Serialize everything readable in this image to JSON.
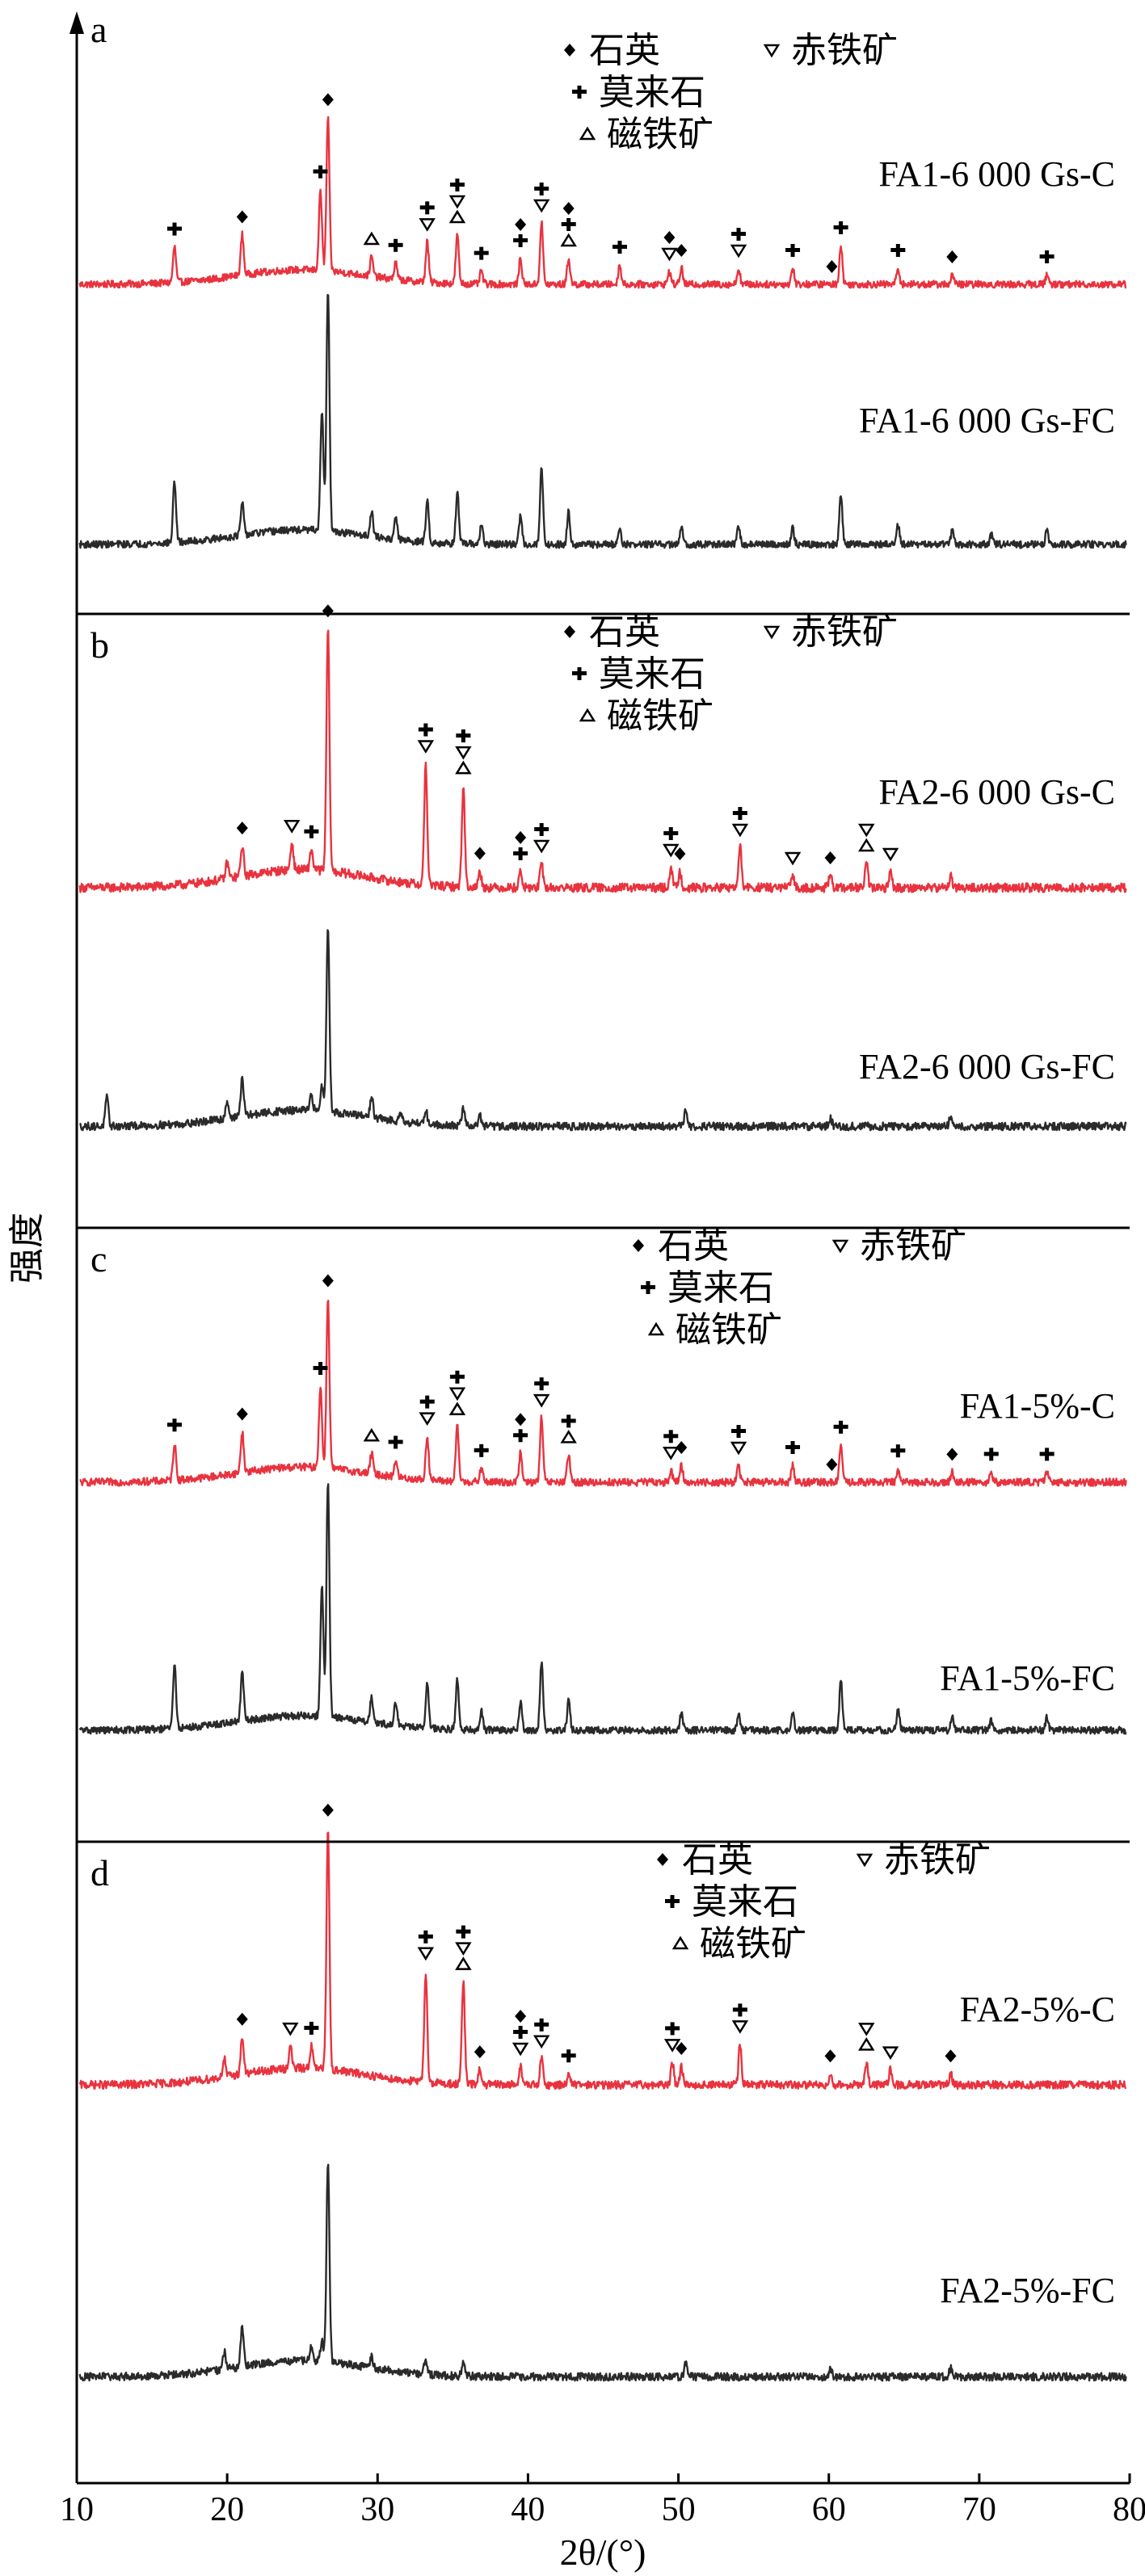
{
  "axes": {
    "xlabel": "2θ/(°)",
    "ylabel": "强度",
    "xlim": [
      10,
      80
    ],
    "xticks": [
      10,
      20,
      30,
      40,
      50,
      60,
      70,
      80
    ]
  },
  "colors": {
    "coated": "#e8333f",
    "uncoated": "#2a2a2a",
    "axis": "#000000"
  },
  "legend_labels": {
    "quartz": "石英",
    "hematite": "赤铁矿",
    "mullite": "莫来石",
    "magnetite": "磁铁矿"
  },
  "chart_data": [
    {
      "type": "line",
      "panel": "a",
      "legend": [
        "石英",
        "赤铁矿",
        "莫来石",
        "磁铁矿"
      ],
      "series": [
        {
          "name": "FA1-6 000 Gs-C",
          "color": "#e8333f",
          "baseline": 0.1,
          "noise": 0.022,
          "peaks": [
            [
              16.5,
              0.22
            ],
            [
              21,
              0.25
            ],
            [
              26.2,
              0.5
            ],
            [
              26.7,
              0.95
            ],
            [
              29.6,
              0.12
            ],
            [
              31.2,
              0.1
            ],
            [
              33.3,
              0.25
            ],
            [
              35.3,
              0.3
            ],
            [
              36.9,
              0.08
            ],
            [
              39.5,
              0.16
            ],
            [
              40.9,
              0.38
            ],
            [
              42.7,
              0.16
            ],
            [
              46.1,
              0.12
            ],
            [
              49.4,
              0.08
            ],
            [
              50.2,
              0.1
            ],
            [
              54,
              0.1
            ],
            [
              57.6,
              0.1
            ],
            [
              60.8,
              0.24
            ],
            [
              64.6,
              0.1
            ],
            [
              68.2,
              0.06
            ],
            [
              74.5,
              0.06
            ]
          ]
        },
        {
          "name": "FA1-6 000 Gs-FC",
          "color": "#2a2a2a",
          "baseline": 0.08,
          "noise": 0.022,
          "peaks": [
            [
              16.5,
              0.38
            ],
            [
              21,
              0.2
            ],
            [
              26.3,
              0.75
            ],
            [
              26.7,
              1.5
            ],
            [
              29.6,
              0.16
            ],
            [
              31.2,
              0.14
            ],
            [
              33.3,
              0.26
            ],
            [
              35.3,
              0.32
            ],
            [
              36.9,
              0.12
            ],
            [
              39.5,
              0.18
            ],
            [
              40.9,
              0.48
            ],
            [
              42.7,
              0.2
            ],
            [
              46.1,
              0.1
            ],
            [
              50.2,
              0.1
            ],
            [
              54,
              0.11
            ],
            [
              57.6,
              0.1
            ],
            [
              60.8,
              0.3
            ],
            [
              64.6,
              0.12
            ],
            [
              68.2,
              0.08
            ],
            [
              70.8,
              0.06
            ],
            [
              74.5,
              0.08
            ]
          ]
        }
      ]
    },
    {
      "type": "line",
      "panel": "b",
      "legend": [
        "石英",
        "赤铁矿",
        "莫来石",
        "磁铁矿"
      ],
      "series": [
        {
          "name": "FA2-6 000 Gs-C",
          "color": "#e8333f",
          "baseline": 0.1,
          "noise": 0.022,
          "peaks": [
            [
              20,
              0.08
            ],
            [
              21,
              0.15
            ],
            [
              24.3,
              0.13
            ],
            [
              25.6,
              0.1
            ],
            [
              26.7,
              1.2
            ],
            [
              33.2,
              0.6
            ],
            [
              35.7,
              0.5
            ],
            [
              36.8,
              0.08
            ],
            [
              39.5,
              0.08
            ],
            [
              40.9,
              0.12
            ],
            [
              49.5,
              0.1
            ],
            [
              50.1,
              0.08
            ],
            [
              54.1,
              0.2
            ],
            [
              57.6,
              0.06
            ],
            [
              60.1,
              0.06
            ],
            [
              62.5,
              0.12
            ],
            [
              64.1,
              0.08
            ],
            [
              68.1,
              0.06
            ]
          ]
        },
        {
          "name": "FA2-6 000 Gs-FC",
          "color": "#2a2a2a",
          "baseline": 0.08,
          "noise": 0.022,
          "peaks": [
            [
              12,
              0.16
            ],
            [
              20,
              0.1
            ],
            [
              21,
              0.22
            ],
            [
              25.6,
              0.08
            ],
            [
              26.3,
              0.14
            ],
            [
              26.7,
              1.05
            ],
            [
              29.6,
              0.12
            ],
            [
              31.5,
              0.06
            ],
            [
              33.2,
              0.08
            ],
            [
              35.7,
              0.1
            ],
            [
              36.8,
              0.06
            ],
            [
              50.5,
              0.1
            ],
            [
              60.1,
              0.05
            ],
            [
              68.1,
              0.05
            ]
          ]
        }
      ]
    },
    {
      "type": "line",
      "panel": "c",
      "legend": [
        "石英",
        "赤铁矿",
        "莫来石",
        "磁铁矿"
      ],
      "series": [
        {
          "name": "FA1-5%-C",
          "color": "#e8333f",
          "baseline": 0.1,
          "noise": 0.022,
          "peaks": [
            [
              16.5,
              0.22
            ],
            [
              21,
              0.24
            ],
            [
              26.2,
              0.48
            ],
            [
              26.7,
              1.0
            ],
            [
              29.6,
              0.12
            ],
            [
              31.2,
              0.1
            ],
            [
              33.3,
              0.26
            ],
            [
              35.3,
              0.32
            ],
            [
              36.9,
              0.08
            ],
            [
              39.5,
              0.17
            ],
            [
              40.9,
              0.38
            ],
            [
              42.7,
              0.16
            ],
            [
              49.5,
              0.07
            ],
            [
              50.2,
              0.1
            ],
            [
              54,
              0.1
            ],
            [
              57.6,
              0.1
            ],
            [
              60.8,
              0.22
            ],
            [
              64.6,
              0.08
            ],
            [
              68.2,
              0.06
            ],
            [
              70.8,
              0.06
            ],
            [
              74.5,
              0.06
            ]
          ]
        },
        {
          "name": "FA1-5%-FC",
          "color": "#2a2a2a",
          "baseline": 0.08,
          "noise": 0.022,
          "peaks": [
            [
              16.5,
              0.4
            ],
            [
              21,
              0.3
            ],
            [
              26.3,
              0.8
            ],
            [
              26.7,
              1.45
            ],
            [
              29.6,
              0.16
            ],
            [
              31.2,
              0.14
            ],
            [
              33.3,
              0.28
            ],
            [
              35.3,
              0.32
            ],
            [
              36.9,
              0.12
            ],
            [
              39.5,
              0.18
            ],
            [
              40.9,
              0.42
            ],
            [
              42.7,
              0.18
            ],
            [
              50.2,
              0.1
            ],
            [
              54,
              0.1
            ],
            [
              57.6,
              0.1
            ],
            [
              60.8,
              0.3
            ],
            [
              64.6,
              0.12
            ],
            [
              68.2,
              0.08
            ],
            [
              70.8,
              0.06
            ],
            [
              74.5,
              0.08
            ]
          ]
        }
      ]
    },
    {
      "type": "line",
      "panel": "d",
      "legend": [
        "石英",
        "赤铁矿",
        "莫来石",
        "磁铁矿"
      ],
      "series": [
        {
          "name": "FA2-5%-C",
          "color": "#e8333f",
          "baseline": 0.1,
          "noise": 0.022,
          "peaks": [
            [
              19.8,
              0.1
            ],
            [
              21,
              0.2
            ],
            [
              24.2,
              0.12
            ],
            [
              25.6,
              0.12
            ],
            [
              26.7,
              1.3
            ],
            [
              33.2,
              0.6
            ],
            [
              35.7,
              0.55
            ],
            [
              36.8,
              0.08
            ],
            [
              39.5,
              0.1
            ],
            [
              40.9,
              0.14
            ],
            [
              42.7,
              0.06
            ],
            [
              49.6,
              0.12
            ],
            [
              50.2,
              0.1
            ],
            [
              54.1,
              0.22
            ],
            [
              60.1,
              0.06
            ],
            [
              62.5,
              0.12
            ],
            [
              64.1,
              0.08
            ],
            [
              68.1,
              0.06
            ]
          ]
        },
        {
          "name": "FA2-5%-FC",
          "color": "#2a2a2a",
          "baseline": 0.08,
          "noise": 0.022,
          "peaks": [
            [
              19.8,
              0.1
            ],
            [
              21,
              0.22
            ],
            [
              25.6,
              0.08
            ],
            [
              26.3,
              0.12
            ],
            [
              26.7,
              1.12
            ],
            [
              29.6,
              0.06
            ],
            [
              33.2,
              0.08
            ],
            [
              35.7,
              0.08
            ],
            [
              50.5,
              0.08
            ],
            [
              60.1,
              0.05
            ],
            [
              68.1,
              0.05
            ]
          ]
        }
      ]
    }
  ]
}
